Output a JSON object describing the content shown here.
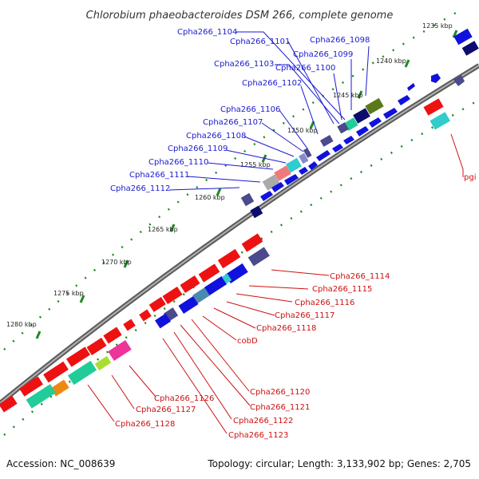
{
  "title": "Chlorobium phaeobacteroides DSM 266, complete genome",
  "footer": {
    "accession": "Accession: NC_008639",
    "topology": "Topology: circular; Length: 3,133,902 bp; Genes: 2,705"
  },
  "ticks": [
    "1235 kbp",
    "1240 kbp",
    "1245 kbp",
    "1250 kbp",
    "1255 kbp",
    "1260 kbp",
    "1265 kbp",
    "1270 kbp",
    "1275 kbp",
    "1280 kbp"
  ],
  "upper_labels": [
    "Cpha266_1104",
    "Cpha266_1101",
    "Cpha266_1098",
    "Cpha266_1099",
    "Cpha266_1103",
    "Cpha266_1100",
    "Cpha266_1102",
    "Cpha266_1106",
    "Cpha266_1107",
    "Cpha266_1108",
    "Cpha266_1109",
    "Cpha266_1110",
    "Cpha266_1111",
    "Cpha266_1112"
  ],
  "right_label": "pgi",
  "lower_labels": [
    "Cpha266_1114",
    "Cpha266_1115",
    "Cpha266_1116",
    "Cpha266_1117",
    "Cpha266_1118",
    "cobD",
    "Cpha266_1120",
    "Cpha266_1121",
    "Cpha266_1122",
    "Cpha266_1123",
    "Cpha266_1126",
    "Cpha266_1127",
    "Cpha266_1128"
  ],
  "colors": {
    "backbone": "#7a7a7a",
    "dots": "#1f8a1f",
    "gene_red": "#ee1111",
    "gene_blue": "#1111dd",
    "gene_navy": "#0c0c6e",
    "gene_slate": "#4a4a8c",
    "gene_cyan": "#33cccc",
    "gene_teal": "#22cc99",
    "gene_olive": "#5a7a1a",
    "gene_pink": "#f07a7a",
    "gene_magenta": "#ee3399",
    "gene_orange": "#ee8811",
    "gene_lime": "#aadd33",
    "gene_gray": "#aaaaaa"
  }
}
